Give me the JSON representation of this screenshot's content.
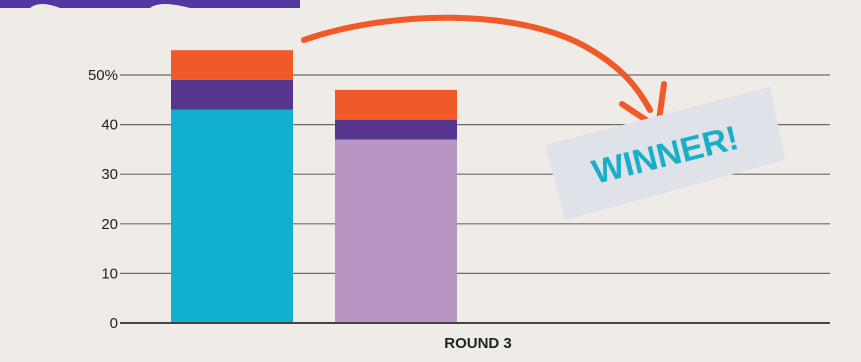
{
  "chart_data": {
    "type": "bar",
    "stacked": true,
    "categories": [
      "",
      ""
    ],
    "category_group_label": "ROUND 3",
    "series": [
      {
        "values": [
          43,
          37
        ],
        "colors": [
          "#12b0cf",
          "#b995c4"
        ]
      },
      {
        "values": [
          6,
          4
        ],
        "colors": [
          "#56358e",
          "#56358e"
        ]
      },
      {
        "values": [
          6,
          6
        ],
        "colors": [
          "#f05a28",
          "#f05a28"
        ]
      }
    ],
    "y_ticks": [
      "0",
      "10",
      "20",
      "30",
      "40",
      "50%"
    ],
    "ylim": [
      0,
      55
    ],
    "grid": true,
    "annotation": {
      "text": "WINNER!",
      "color": "#1aafc9",
      "arrow_color": "#f05a28"
    }
  },
  "colors": {
    "background": "#efebe6",
    "grid": "#6b6b6b",
    "axis": "#444444",
    "tick_label": "#222222",
    "stamp": "#dfe2e8",
    "header_strip": "#5038a0"
  }
}
